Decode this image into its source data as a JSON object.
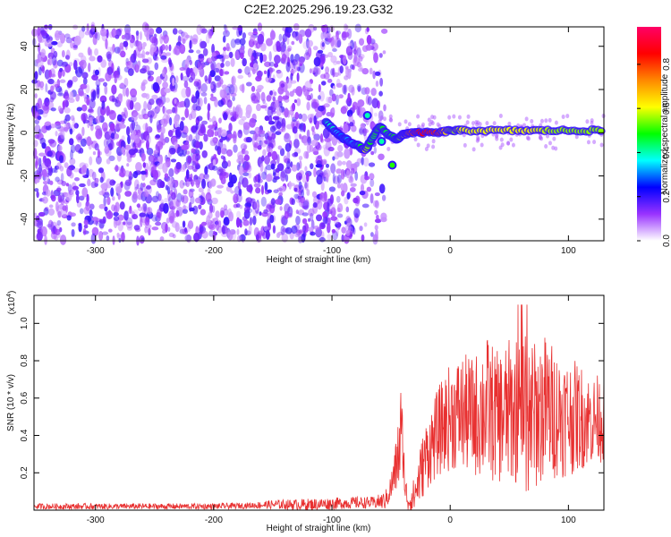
{
  "figure": {
    "title": "C2E2.2025.296.19.23.G32"
  },
  "colors": {
    "signal": "#e83030",
    "axis": "#000000",
    "background": "#ffffff"
  },
  "chart_data": [
    {
      "type": "heatmap",
      "xlabel": "Height of straight line (km)",
      "ylabel": "Frequency (Hz)",
      "xlim": [
        -352,
        130
      ],
      "ylim": [
        -50,
        49
      ],
      "xticks": [
        -300,
        -200,
        -100,
        0,
        100
      ],
      "yticks": [
        -40,
        -20,
        0,
        20,
        40
      ],
      "xtick_labels": [
        "-300",
        "-200",
        "-100",
        "0",
        "100"
      ],
      "ytick_labels": [
        "-40",
        "-20",
        "0",
        "20",
        "40"
      ],
      "colorbar": {
        "label": "Normalized spectral amplitude",
        "range": [
          0,
          0.97
        ],
        "ticks": [
          0.0,
          0.2,
          0.4,
          0.6,
          0.8
        ],
        "tick_labels": [
          "0.0",
          "0.2",
          "0.4",
          "0.6",
          "0.8"
        ],
        "colormap": [
          "#ffffff",
          "#9933ff",
          "#0000ff",
          "#00ffff",
          "#00ff00",
          "#ffff00",
          "#ff8800",
          "#ff0000",
          "#ff0066"
        ]
      },
      "features": {
        "noise_region_x": [
          -352,
          -65
        ],
        "noise_amplitude": [
          0.05,
          0.2
        ],
        "signal_track": {
          "x": [
            -105,
            -98,
            -92,
            -85,
            -78,
            -72,
            -66,
            -60,
            -52,
            -45,
            -40,
            -35,
            -25,
            -10,
            0,
            10,
            30,
            50,
            70,
            90,
            110,
            130
          ],
          "y": [
            5,
            1,
            -2,
            -4,
            -6,
            -8,
            -3,
            3,
            -1,
            -3,
            -1,
            0,
            0,
            0,
            1,
            1,
            1,
            1,
            1,
            1,
            1,
            1
          ],
          "amplitude": [
            0.4,
            0.4,
            0.3,
            0.35,
            0.4,
            0.6,
            0.45,
            0.5,
            0.45,
            0.5,
            0.6,
            0.75,
            0.85,
            0.8,
            0.55,
            0.6,
            0.6,
            0.6,
            0.6,
            0.55,
            0.55,
            0.55
          ]
        },
        "secondary_blobs": [
          {
            "x": -70,
            "y": 8,
            "amplitude": 0.4
          },
          {
            "x": -49,
            "y": -15,
            "amplitude": 0.5
          },
          {
            "x": -58,
            "y": -4,
            "amplitude": 0.4
          }
        ]
      }
    },
    {
      "type": "line",
      "xlabel": "Height of straight line (km)",
      "ylabel": "SNR (10 * v/v)",
      "yscale_label": "(x10",
      "yscale_exponent": "4",
      "y_multiplier": 10000,
      "xlim": [
        -352,
        130
      ],
      "ylim": [
        0,
        1.15
      ],
      "xticks": [
        -300,
        -200,
        -100,
        0,
        100
      ],
      "yticks": [
        0.2,
        0.4,
        0.6,
        0.8,
        1.0
      ],
      "xtick_labels": [
        "-300",
        "-200",
        "-100",
        "0",
        "100"
      ],
      "ytick_labels": [
        "0.2",
        "0.4",
        "0.6",
        "0.8",
        "1.0"
      ],
      "series": [
        {
          "color": "#e83030",
          "envelope": {
            "x": [
              -352,
              -300,
              -250,
              -200,
              -170,
              -150,
              -120,
              -100,
              -80,
              -65,
              -55,
              -50,
              -45,
              -42,
              -40,
              -38,
              -35,
              -30,
              -25,
              -20,
              -10,
              0,
              10,
              20,
              30,
              40,
              50,
              60,
              65,
              70,
              80,
              90,
              100,
              110,
              120,
              130
            ],
            "mean": [
              0.02,
              0.02,
              0.02,
              0.02,
              0.025,
              0.03,
              0.03,
              0.035,
              0.04,
              0.04,
              0.05,
              0.12,
              0.25,
              0.4,
              0.35,
              0.1,
              0.05,
              0.08,
              0.2,
              0.3,
              0.42,
              0.5,
              0.52,
              0.5,
              0.55,
              0.5,
              0.52,
              0.55,
              0.6,
              0.5,
              0.55,
              0.52,
              0.5,
              0.5,
              0.48,
              0.5
            ],
            "spread": [
              0.01,
              0.01,
              0.01,
              0.01,
              0.01,
              0.015,
              0.02,
              0.02,
              0.02,
              0.02,
              0.03,
              0.05,
              0.1,
              0.2,
              0.1,
              0.05,
              0.05,
              0.06,
              0.1,
              0.12,
              0.15,
              0.18,
              0.2,
              0.2,
              0.25,
              0.22,
              0.25,
              0.25,
              0.35,
              0.25,
              0.25,
              0.22,
              0.2,
              0.18,
              0.15,
              0.15
            ]
          }
        }
      ]
    }
  ]
}
